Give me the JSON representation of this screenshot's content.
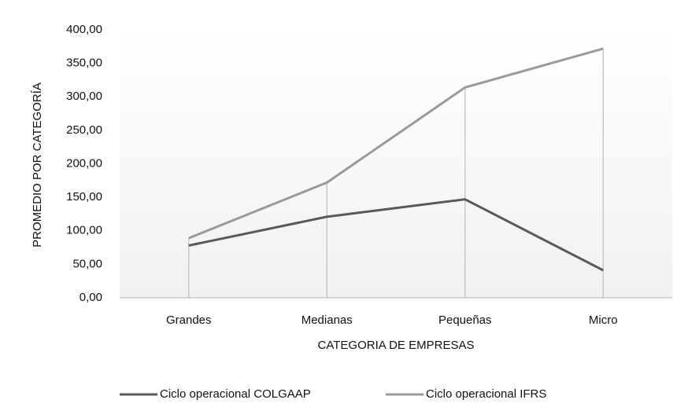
{
  "chart_data": {
    "type": "line",
    "x_label": "CATEGORIA DE EMPRESAS",
    "y_label": "PROMEDIO POR CATEGORÍA",
    "categories": [
      "Grandes",
      "Medianas",
      "Pequeñas",
      "Micro"
    ],
    "series": [
      {
        "name": "Ciclo operacional COLGAAP",
        "color": "#595959",
        "values": [
          78,
          121,
          147,
          41
        ]
      },
      {
        "name": "Ciclo operacional IFRS",
        "color": "#9a9a9a",
        "values": [
          89,
          172,
          314,
          372
        ]
      }
    ],
    "ylim": [
      0,
      400
    ],
    "yticks": [
      {
        "value": 0,
        "label": "0,00"
      },
      {
        "value": 50,
        "label": "50,00"
      },
      {
        "value": 100,
        "label": "100,00"
      },
      {
        "value": 150,
        "label": "150,00"
      },
      {
        "value": 200,
        "label": "200,00"
      },
      {
        "value": 250,
        "label": "250,00"
      },
      {
        "value": 300,
        "label": "300,00"
      },
      {
        "value": 350,
        "label": "350,00"
      },
      {
        "value": 400,
        "label": "400,00"
      }
    ],
    "drop_lines": true,
    "legend": "bottom"
  }
}
